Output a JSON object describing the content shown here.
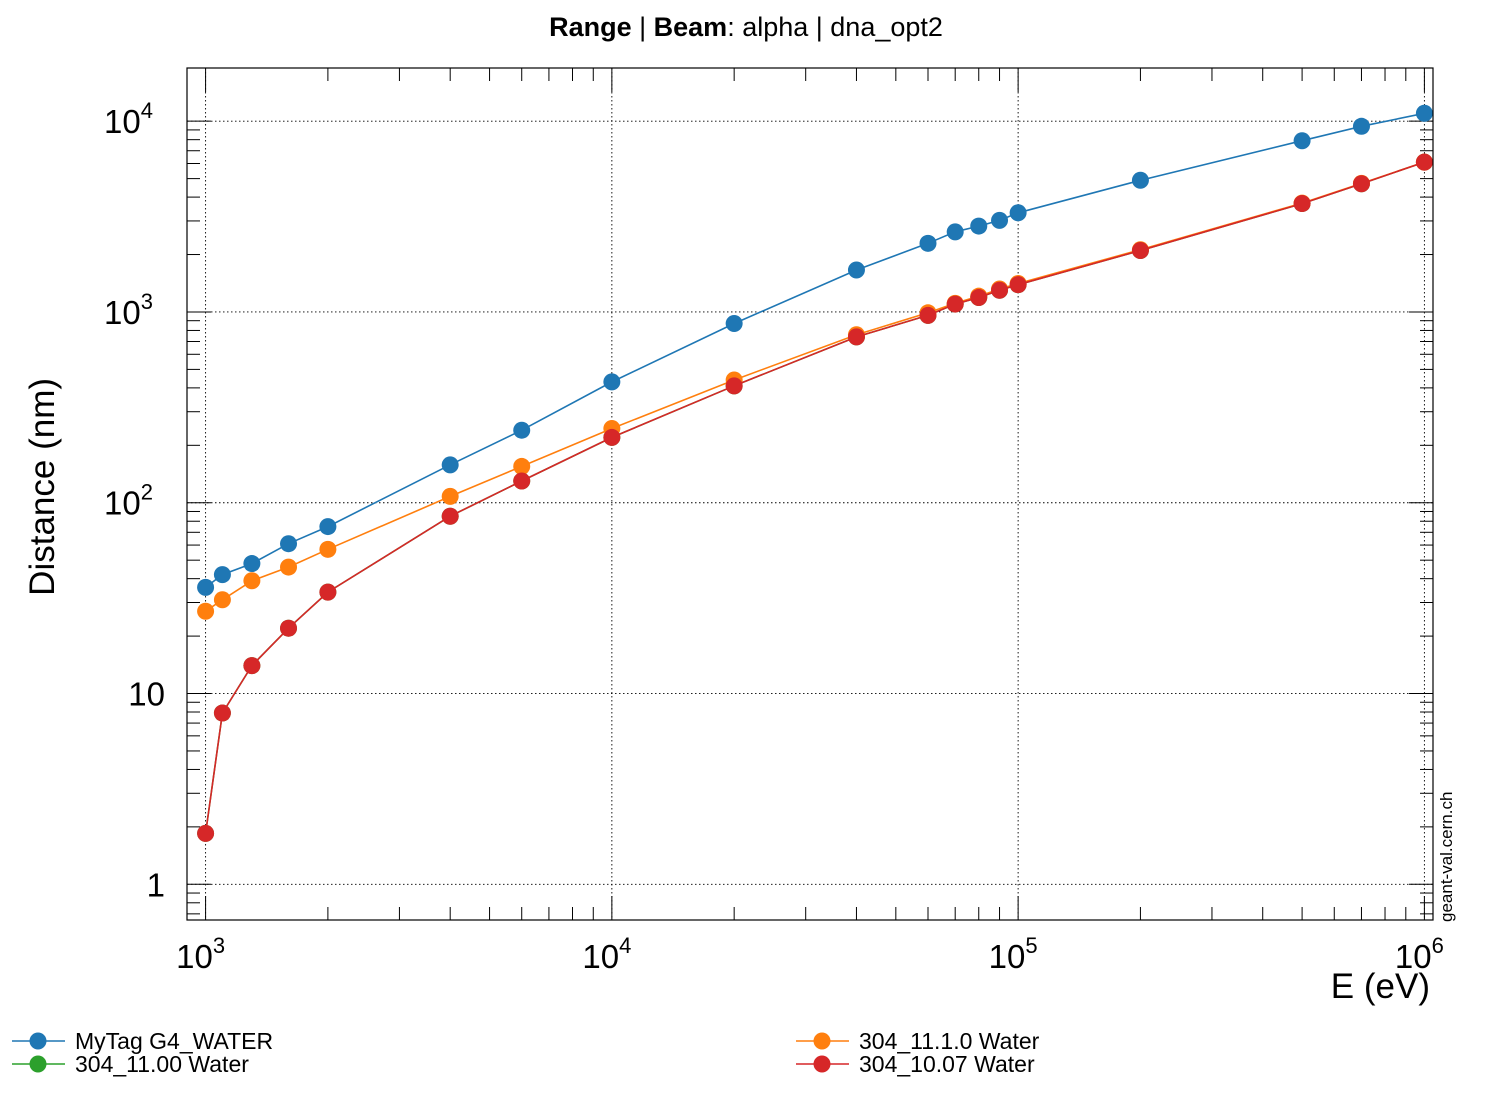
{
  "header": {
    "title_part1": "Range",
    "title_sep1": " | ",
    "title_part2": "Beam",
    "title_part3": ": alpha | dna_opt2"
  },
  "watermark": "geant-val.cern.ch",
  "chart_data": {
    "type": "line",
    "xlabel": "E (eV)",
    "ylabel": "Distance (nm)",
    "xscale": "log",
    "yscale": "log",
    "xlim": [
      900,
      1050000
    ],
    "ylim": [
      0.65,
      19000
    ],
    "grid": true,
    "legend_position": "bottom",
    "x_ticks": [
      {
        "value": 1000,
        "base": "10",
        "exp": "3"
      },
      {
        "value": 10000,
        "base": "10",
        "exp": "4"
      },
      {
        "value": 100000,
        "base": "10",
        "exp": "5"
      },
      {
        "value": 1000000,
        "base": "10",
        "exp": "6"
      }
    ],
    "y_ticks": [
      {
        "value": 1,
        "base": "1",
        "exp": ""
      },
      {
        "value": 10,
        "base": "10",
        "exp": ""
      },
      {
        "value": 100,
        "base": "10",
        "exp": "2"
      },
      {
        "value": 1000,
        "base": "10",
        "exp": "3"
      },
      {
        "value": 10000,
        "base": "10",
        "exp": "4"
      }
    ],
    "series": [
      {
        "name": "MyTag G4_WATER",
        "color": "#1f77b4",
        "x": [
          1000,
          1100,
          1300,
          1600,
          2000,
          4000,
          6000,
          10000,
          20000,
          40000,
          60000,
          70000,
          80000,
          90000,
          100000,
          200000,
          500000,
          700000,
          1000000
        ],
        "y": [
          36,
          42,
          48,
          61,
          75,
          158,
          240,
          430,
          870,
          1660,
          2290,
          2630,
          2820,
          3020,
          3310,
          4900,
          7900,
          9400,
          11000
        ]
      },
      {
        "name": "304_11.00 Water",
        "color": "#2ca02c",
        "x": [
          1000,
          1100,
          1300,
          1600,
          2000,
          4000,
          6000,
          10000,
          20000,
          40000,
          60000,
          70000,
          80000,
          90000,
          100000,
          200000,
          500000,
          700000,
          1000000
        ],
        "y": [
          1.85,
          7.9,
          14,
          22,
          34,
          85,
          130,
          220,
          410,
          740,
          960,
          1100,
          1190,
          1300,
          1390,
          2100,
          3700,
          4700,
          6100
        ]
      },
      {
        "name": "304_11.1.0 Water",
        "color": "#ff7f0e",
        "x": [
          1000,
          1100,
          1300,
          1600,
          2000,
          4000,
          6000,
          10000,
          20000,
          40000,
          60000,
          70000,
          80000,
          90000,
          100000,
          200000,
          500000,
          700000,
          1000000
        ],
        "y": [
          27,
          31,
          39,
          46,
          57,
          108,
          155,
          245,
          440,
          760,
          990,
          1110,
          1210,
          1320,
          1410,
          2120,
          3720,
          4720,
          6100
        ]
      },
      {
        "name": "304_10.07 Water",
        "color": "#d62728",
        "x": [
          1000,
          1100,
          1300,
          1600,
          2000,
          4000,
          6000,
          10000,
          20000,
          40000,
          60000,
          70000,
          80000,
          90000,
          100000,
          200000,
          500000,
          700000,
          1000000
        ],
        "y": [
          1.85,
          7.9,
          14,
          22,
          34,
          85,
          130,
          220,
          410,
          740,
          960,
          1100,
          1190,
          1300,
          1390,
          2100,
          3700,
          4700,
          6100
        ]
      }
    ]
  }
}
